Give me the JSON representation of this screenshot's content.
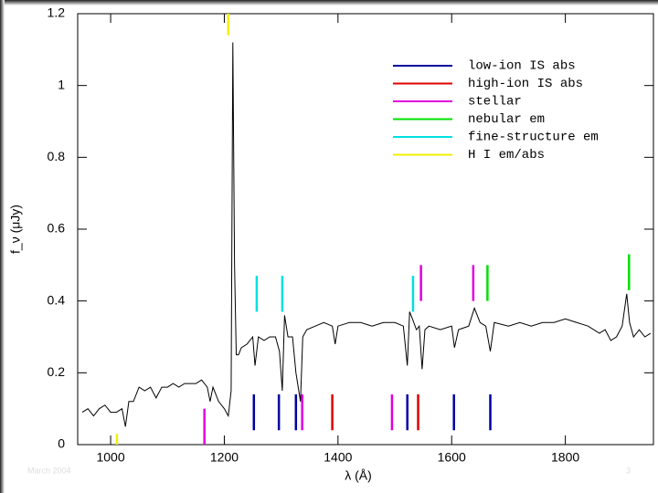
{
  "chart_data": {
    "type": "line",
    "xlabel": "λ (Å)",
    "ylabel": "f_ν (μJy)",
    "color": "#000000",
    "xlim": [
      942,
      1955
    ],
    "ylim": [
      0,
      1.2
    ],
    "xticks": [
      1000,
      1200,
      1400,
      1600,
      1800
    ],
    "yticks": [
      0,
      0.2,
      0.4,
      0.6,
      0.8,
      1,
      1.2
    ],
    "x": [
      950,
      960,
      970,
      980,
      990,
      1000,
      1010,
      1020,
      1026,
      1032,
      1040,
      1050,
      1060,
      1070,
      1080,
      1090,
      1100,
      1110,
      1120,
      1130,
      1140,
      1150,
      1160,
      1170,
      1175,
      1180,
      1190,
      1200,
      1207,
      1212,
      1215,
      1218,
      1221,
      1225,
      1230,
      1240,
      1250,
      1254,
      1260,
      1270,
      1280,
      1290,
      1297,
      1302,
      1306,
      1312,
      1320,
      1326,
      1334,
      1338,
      1345,
      1360,
      1375,
      1390,
      1395,
      1400,
      1420,
      1440,
      1460,
      1480,
      1500,
      1515,
      1522,
      1526,
      1531,
      1538,
      1543,
      1548,
      1553,
      1560,
      1580,
      1600,
      1605,
      1612,
      1630,
      1640,
      1650,
      1660,
      1668,
      1675,
      1700,
      1720,
      1740,
      1760,
      1780,
      1800,
      1820,
      1840,
      1860,
      1870,
      1880,
      1890,
      1900,
      1908,
      1913,
      1920,
      1930,
      1940,
      1950
    ],
    "values": [
      0.09,
      0.1,
      0.08,
      0.1,
      0.11,
      0.09,
      0.09,
      0.1,
      0.05,
      0.12,
      0.12,
      0.16,
      0.15,
      0.16,
      0.13,
      0.16,
      0.16,
      0.17,
      0.16,
      0.17,
      0.17,
      0.17,
      0.18,
      0.16,
      0.12,
      0.16,
      0.12,
      0.1,
      0.08,
      0.15,
      1.12,
      0.5,
      0.25,
      0.25,
      0.27,
      0.28,
      0.3,
      0.22,
      0.3,
      0.29,
      0.3,
      0.3,
      0.26,
      0.15,
      0.36,
      0.3,
      0.3,
      0.2,
      0.12,
      0.3,
      0.32,
      0.33,
      0.34,
      0.33,
      0.28,
      0.33,
      0.34,
      0.34,
      0.33,
      0.34,
      0.34,
      0.33,
      0.22,
      0.37,
      0.35,
      0.32,
      0.33,
      0.21,
      0.32,
      0.33,
      0.32,
      0.33,
      0.27,
      0.32,
      0.33,
      0.38,
      0.34,
      0.33,
      0.26,
      0.34,
      0.33,
      0.34,
      0.33,
      0.34,
      0.34,
      0.35,
      0.34,
      0.33,
      0.31,
      0.32,
      0.29,
      0.3,
      0.33,
      0.42,
      0.34,
      0.3,
      0.32,
      0.3,
      0.31
    ],
    "markers": [
      {
        "name": "low-ion IS abs",
        "color": "#0000a0",
        "x": [
          1252,
          1296,
          1326,
          1522,
          1604,
          1668
        ],
        "spans": [
          [
            0.04,
            0.14
          ],
          [
            0.04,
            0.14
          ],
          [
            0.04,
            0.14
          ],
          [
            0.04,
            0.14
          ],
          [
            0.04,
            0.14
          ],
          [
            0.04,
            0.14
          ]
        ]
      },
      {
        "name": "high-ion IS abs",
        "color": "#e00000",
        "x": [
          1390,
          1541
        ],
        "spans": [
          [
            0.04,
            0.14
          ],
          [
            0.04,
            0.14
          ]
        ]
      },
      {
        "name": "stellar",
        "color": "#e000e0",
        "x": [
          1165,
          1337,
          1495,
          1546,
          1638
        ],
        "spans": [
          [
            0,
            0.1
          ],
          [
            0.04,
            0.14
          ],
          [
            0.04,
            0.14
          ],
          [
            0.4,
            0.5
          ],
          [
            0.4,
            0.5
          ]
        ]
      },
      {
        "name": "nebular em",
        "color": "#00e000",
        "x": [
          1663,
          1912
        ],
        "spans": [
          [
            0.4,
            0.5
          ],
          [
            0.43,
            0.53
          ]
        ]
      },
      {
        "name": "fine-structure em",
        "color": "#00e0e0",
        "x": [
          1257,
          1302,
          1532
        ],
        "spans": [
          [
            0.37,
            0.47
          ],
          [
            0.37,
            0.47
          ],
          [
            0.37,
            0.47
          ]
        ]
      },
      {
        "name": "H I em/abs",
        "color": "#f0f000",
        "x": [
          1011,
          1207
        ],
        "spans": [
          [
            0,
            0.03
          ],
          [
            1.14,
            1.2
          ]
        ]
      }
    ]
  },
  "footer": {
    "left": "March 2004",
    "page": "3"
  }
}
